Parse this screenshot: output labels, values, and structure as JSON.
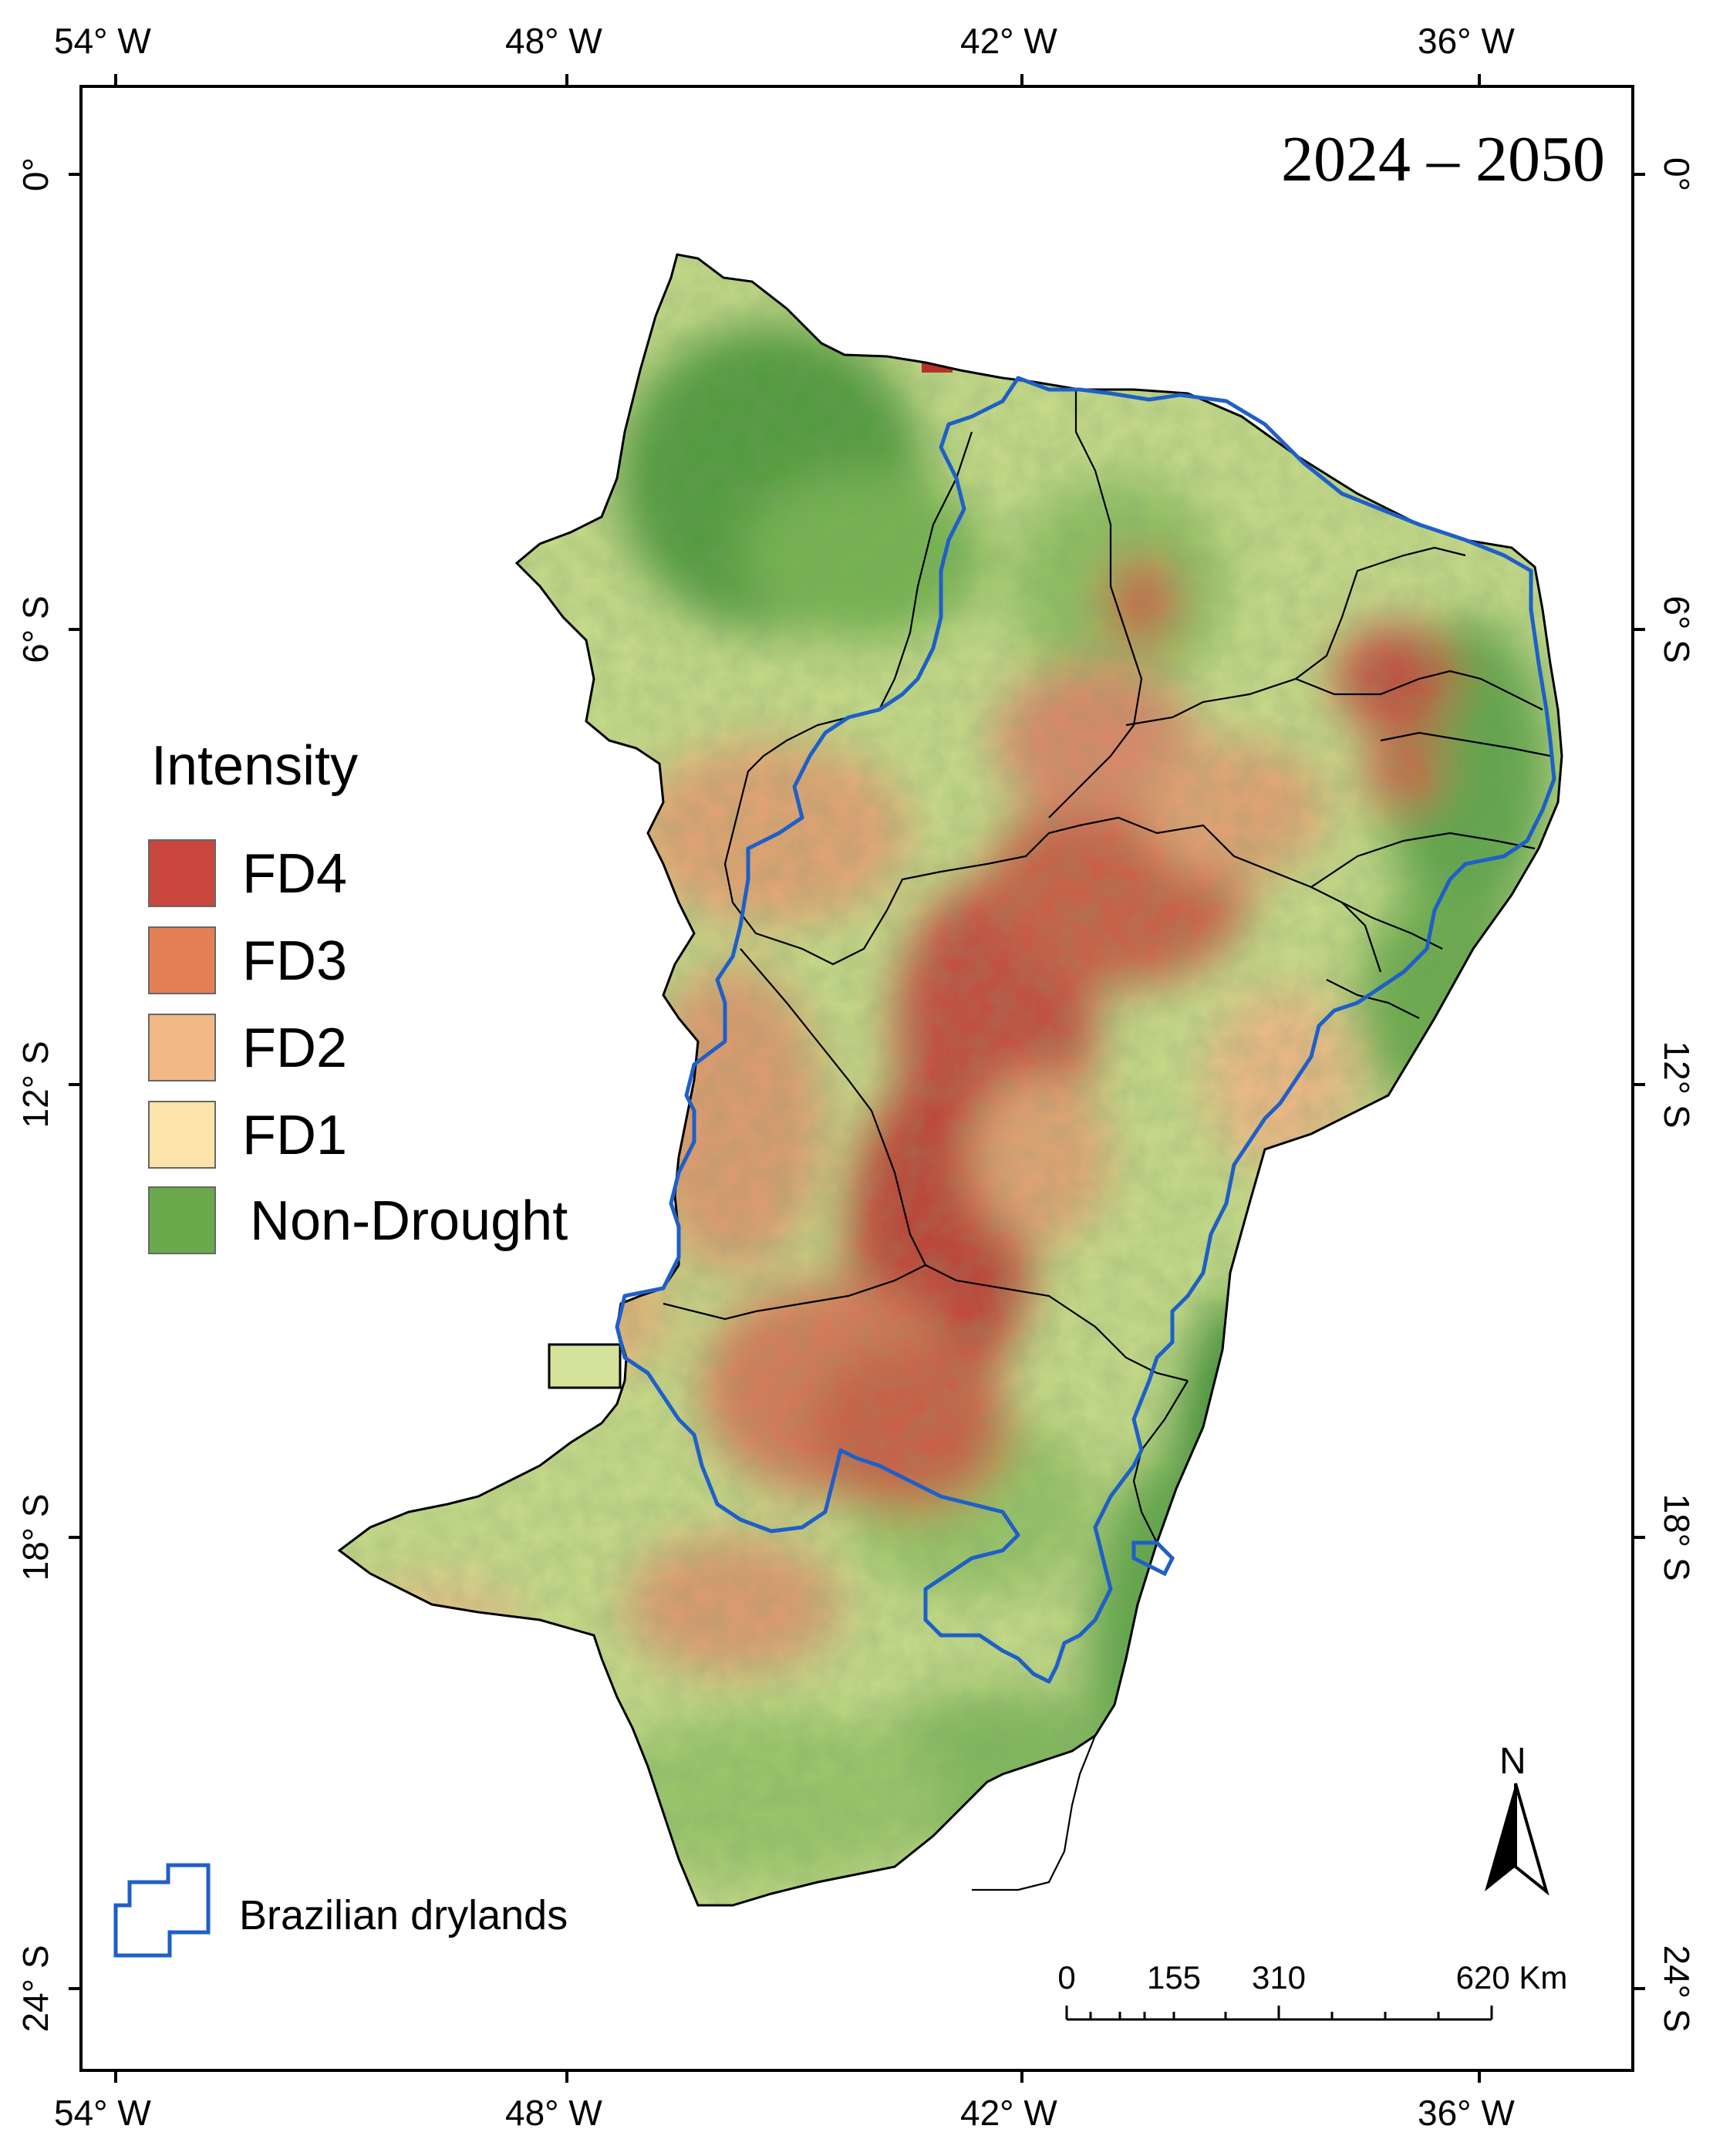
{
  "period": "2024 – 2050",
  "axes": {
    "lon_labels": [
      "54° W",
      "48° W",
      "42° W",
      "36° W"
    ],
    "lat_labels": [
      "0°",
      "6° S",
      "12° S",
      "18° S",
      "24° S"
    ]
  },
  "legend": {
    "title": "Intensity",
    "items": [
      {
        "label": "FD4",
        "color": "#c8463c"
      },
      {
        "label": "FD3",
        "color": "#e47f56"
      },
      {
        "label": "FD2",
        "color": "#f2b986"
      },
      {
        "label": "FD1",
        "color": "#fbe3aa"
      },
      {
        "label": "Non-Drought",
        "color": "#6aaa4c"
      }
    ]
  },
  "drylands_legend": {
    "label": "Brazilian drylands",
    "color": "#1f5fc8"
  },
  "scale_bar": {
    "labels": [
      "0",
      "155",
      "310",
      "620 Km"
    ]
  },
  "north_arrow": {
    "label": "N"
  }
}
